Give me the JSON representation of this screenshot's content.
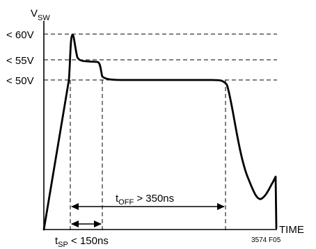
{
  "chart_data": {
    "type": "line",
    "ylabel": {
      "main": "V",
      "sub": "SW"
    },
    "xlabel": "TIME",
    "figure_id": "3574 F05",
    "levels": [
      {
        "label": "< 60V",
        "value": 60
      },
      {
        "label": "< 55V",
        "value": 55
      },
      {
        "label": "< 50V",
        "value": 50
      }
    ],
    "annotations": {
      "t_off": {
        "main": "t",
        "sub": "OFF",
        "rest": " > 350ns"
      },
      "t_sp": {
        "main": "t",
        "sub": "SP",
        "rest": " < 150ns"
      }
    },
    "waveform": {
      "x_units": "ns (relative)",
      "points": [
        [
          0,
          0
        ],
        [
          150,
          50
        ],
        [
          195,
          60
        ],
        [
          225,
          55
        ],
        [
          365,
          54
        ],
        [
          380,
          50
        ],
        [
          475,
          49.8
        ],
        [
          630,
          49.8
        ],
        [
          695,
          49
        ],
        [
          780,
          22
        ],
        [
          860,
          8
        ],
        [
          930,
          13
        ],
        [
          945,
          14
        ],
        [
          950,
          0
        ]
      ]
    }
  }
}
